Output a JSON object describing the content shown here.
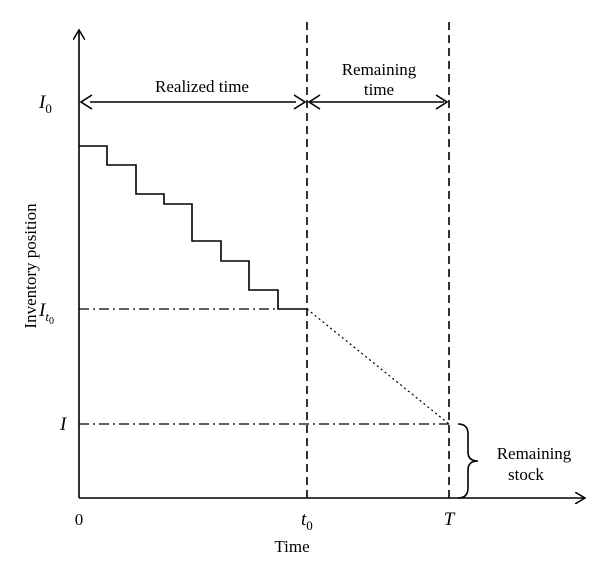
{
  "axes": {
    "x_label": "Time",
    "y_label": "Inventory position"
  },
  "x_ticks": {
    "origin": "0",
    "t0_main": "t",
    "t0_sub": "0",
    "T": "T"
  },
  "y_ticks": {
    "I0_main": "I",
    "I0_sub": "0",
    "It0_main": "I",
    "It0_sub_main": "t",
    "It0_sub_sub": "0",
    "I": "I"
  },
  "annotations": {
    "realized_time": "Realized time",
    "remaining_time_line1": "Remaining",
    "remaining_time_line2": "time",
    "remaining_stock_line1": "Remaining",
    "remaining_stock_line2": "stock"
  }
}
